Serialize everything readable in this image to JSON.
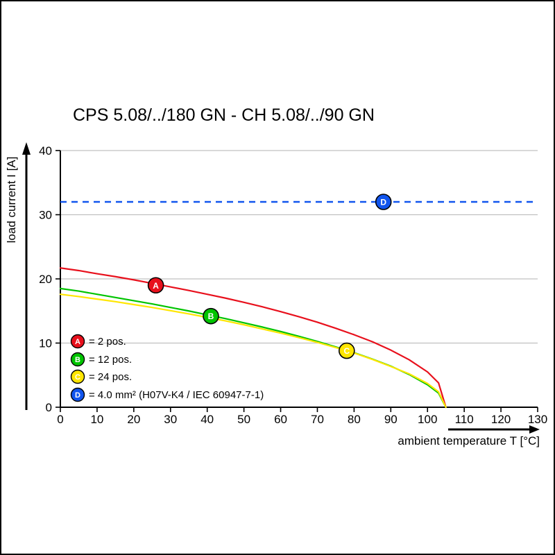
{
  "page": {
    "title": "CPS 5.08/../180 GN - CH 5.08/../90 GN"
  },
  "chart_data": {
    "type": "line",
    "title": "CPS 5.08/../180 GN - CH 5.08/../90 GN",
    "xlabel": "ambient temperature T [°C]",
    "ylabel": "load current I [A]",
    "xlim": [
      0,
      130
    ],
    "ylim": [
      0,
      40
    ],
    "x_ticks": [
      0,
      10,
      20,
      30,
      40,
      50,
      60,
      70,
      80,
      90,
      100,
      110,
      120,
      130
    ],
    "y_ticks": [
      0,
      10,
      20,
      30,
      40
    ],
    "grid": "horizontal-only",
    "grid_color": "#c0c0c0",
    "legend_position": "inside-lower-left",
    "series": [
      {
        "name": "A",
        "label": "= 2 pos.",
        "color": "#e8101c",
        "points": [
          [
            0,
            21.7
          ],
          [
            5,
            21.3
          ],
          [
            10,
            20.8
          ],
          [
            15,
            20.35
          ],
          [
            20,
            19.85
          ],
          [
            25,
            19.3
          ],
          [
            30,
            18.75
          ],
          [
            35,
            18.2
          ],
          [
            40,
            17.6
          ],
          [
            45,
            17.0
          ],
          [
            50,
            16.35
          ],
          [
            55,
            15.65
          ],
          [
            60,
            14.9
          ],
          [
            65,
            14.1
          ],
          [
            70,
            13.25
          ],
          [
            75,
            12.3
          ],
          [
            80,
            11.3
          ],
          [
            85,
            10.2
          ],
          [
            90,
            8.9
          ],
          [
            95,
            7.4
          ],
          [
            100,
            5.5
          ],
          [
            103,
            3.8
          ],
          [
            105,
            0
          ]
        ]
      },
      {
        "name": "B",
        "label": "= 12 pos.",
        "color": "#00c400",
        "points": [
          [
            0,
            18.5
          ],
          [
            5,
            18.1
          ],
          [
            10,
            17.6
          ],
          [
            15,
            17.1
          ],
          [
            20,
            16.6
          ],
          [
            25,
            16.1
          ],
          [
            30,
            15.55
          ],
          [
            35,
            15.0
          ],
          [
            40,
            14.4
          ],
          [
            45,
            13.8
          ],
          [
            50,
            13.15
          ],
          [
            55,
            12.5
          ],
          [
            60,
            11.8
          ],
          [
            65,
            11.05
          ],
          [
            70,
            10.25
          ],
          [
            75,
            9.4
          ],
          [
            80,
            8.5
          ],
          [
            85,
            7.5
          ],
          [
            90,
            6.4
          ],
          [
            95,
            5.1
          ],
          [
            100,
            3.5
          ],
          [
            103,
            2.2
          ],
          [
            105,
            0
          ]
        ]
      },
      {
        "name": "C",
        "label": "= 24 pos.",
        "color": "#ffe600",
        "points": [
          [
            0,
            17.6
          ],
          [
            5,
            17.25
          ],
          [
            10,
            16.85
          ],
          [
            15,
            16.45
          ],
          [
            20,
            16.0
          ],
          [
            25,
            15.55
          ],
          [
            30,
            15.05
          ],
          [
            35,
            14.55
          ],
          [
            40,
            14.0
          ],
          [
            45,
            13.45
          ],
          [
            50,
            12.85
          ],
          [
            55,
            12.2
          ],
          [
            60,
            11.55
          ],
          [
            65,
            10.85
          ],
          [
            70,
            10.1
          ],
          [
            75,
            9.3
          ],
          [
            80,
            8.45
          ],
          [
            85,
            7.45
          ],
          [
            90,
            6.35
          ],
          [
            95,
            5.2
          ],
          [
            100,
            3.7
          ],
          [
            103,
            2.4
          ],
          [
            105,
            0
          ]
        ]
      }
    ],
    "reference_line": {
      "name": "D",
      "label": "= 4.0 mm² (H07V-K4 / IEC 60947-7-1)",
      "color": "#1155ee",
      "value": 32,
      "style": "dashed"
    },
    "markers": [
      {
        "letter": "A",
        "x": 26,
        "y": 19,
        "color": "#e8101c"
      },
      {
        "letter": "B",
        "x": 41,
        "y": 14.2,
        "color": "#00c400"
      },
      {
        "letter": "C",
        "x": 78,
        "y": 8.8,
        "color": "#ffe600"
      },
      {
        "letter": "D",
        "x": 88,
        "y": 32,
        "color": "#1155ee"
      }
    ],
    "legend": [
      {
        "letter": "A",
        "color": "#e8101c",
        "label": "= 2 pos."
      },
      {
        "letter": "B",
        "color": "#00c400",
        "label": "= 12 pos."
      },
      {
        "letter": "C",
        "color": "#ffe600",
        "label": "= 24 pos."
      },
      {
        "letter": "D",
        "color": "#1155ee",
        "label": "= 4.0 mm² (H07V-K4 / IEC 60947-7-1)"
      }
    ]
  }
}
